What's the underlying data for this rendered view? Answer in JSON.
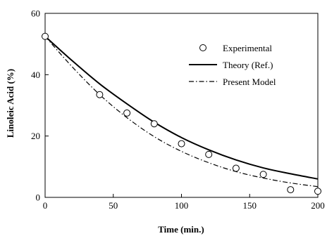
{
  "chart_data": {
    "type": "line",
    "title": "",
    "xlabel": "Time (min.)",
    "ylabel": "Linoleic Acid (%)",
    "xlim": [
      0,
      200
    ],
    "ylim": [
      0,
      60
    ],
    "xticks": [
      0,
      50,
      100,
      150,
      200
    ],
    "yticks": [
      0,
      20,
      40,
      60
    ],
    "xtick_labels": [
      "0",
      "50",
      "100",
      "150",
      "200"
    ],
    "ytick_labels": [
      "0",
      "20",
      "40",
      "60"
    ],
    "grid": false,
    "legend_position": "top-right",
    "series": [
      {
        "name": "Experimental",
        "style": "marker",
        "marker": "open-circle",
        "x": [
          0,
          40,
          60,
          80,
          100,
          120,
          140,
          160,
          180,
          200
        ],
        "y": [
          52.5,
          33.5,
          27.5,
          24,
          17.5,
          14,
          9.5,
          7.5,
          2.5,
          2
        ]
      },
      {
        "name": "Theory (Ref.)",
        "style": "solid",
        "x": [
          0,
          20,
          40,
          60,
          80,
          100,
          120,
          140,
          160,
          180,
          200
        ],
        "y": [
          52.5,
          44.5,
          37,
          30.5,
          24.5,
          19.5,
          15.5,
          12.2,
          9.6,
          7.7,
          6
        ]
      },
      {
        "name": "Present Model",
        "style": "dash-dot",
        "x": [
          0,
          20,
          40,
          60,
          80,
          100,
          120,
          140,
          160,
          180,
          200
        ],
        "y": [
          52.5,
          42.5,
          33.5,
          26,
          19.8,
          15,
          11.3,
          8.4,
          6.3,
          4.7,
          3.5
        ]
      }
    ]
  }
}
